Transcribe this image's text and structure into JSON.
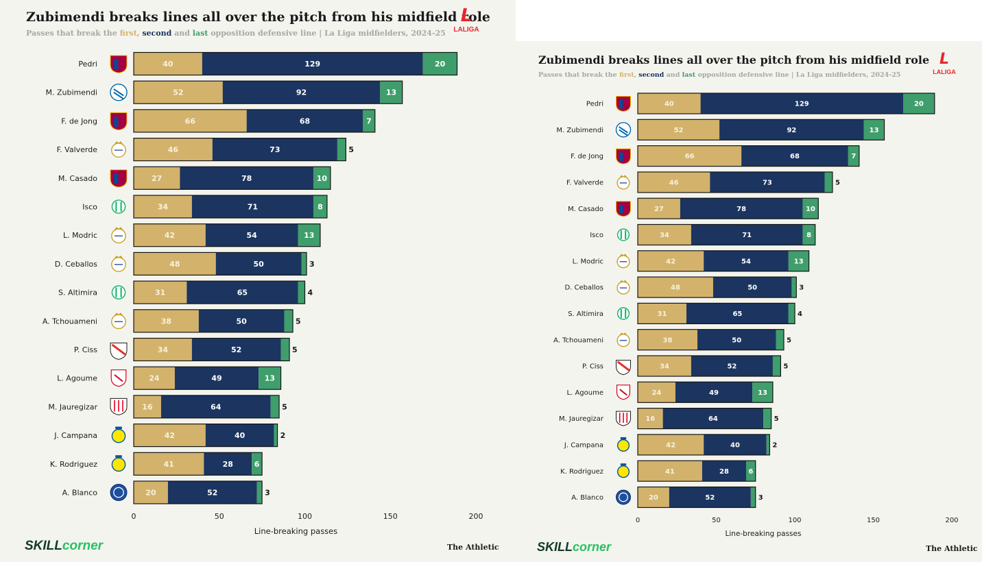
{
  "title": "Zubimendi breaks lines all over the pitch from his midfield role",
  "subtitle": {
    "prefix": "Passes that break the ",
    "first": "first",
    "comma": ", ",
    "second": "second",
    "and": " and ",
    "last": "last",
    "suffix": " opposition defensive line | La Liga midfielders, 2024-25"
  },
  "logo": {
    "mark": "L",
    "text": "LALIGA"
  },
  "footer": {
    "skill": "SKILL",
    "corner": "corner",
    "athletic": "The Athletic"
  },
  "colors": {
    "first": "#d3b26c",
    "second": "#1b3560",
    "last": "#3f9e6b"
  },
  "chart_data": {
    "type": "bar",
    "orientation": "horizontal",
    "stacked": true,
    "categories": [
      "Pedri",
      "M. Zubimendi",
      "F. de Jong",
      "F. Valverde",
      "M. Casado",
      "Isco",
      "L. Modric",
      "D. Ceballos",
      "S. Altimira",
      "A. Tchouameni",
      "P. Ciss",
      "L. Agoume",
      "M. Jauregizar",
      "J. Campana",
      "K. Rodriguez",
      "A. Blanco"
    ],
    "team_crests": [
      "barcelona-crest-icon",
      "real-sociedad-crest-icon",
      "barcelona-crest-icon",
      "real-madrid-crest-icon",
      "barcelona-crest-icon",
      "real-betis-crest-icon",
      "real-madrid-crest-icon",
      "real-madrid-crest-icon",
      "real-betis-crest-icon",
      "real-madrid-crest-icon",
      "rayo-vallecano-crest-icon",
      "sevilla-crest-icon",
      "athletic-club-crest-icon",
      "las-palmas-crest-icon",
      "las-palmas-crest-icon",
      "alaves-crest-icon"
    ],
    "series": [
      {
        "name": "first",
        "values": [
          40,
          52,
          66,
          46,
          27,
          34,
          42,
          48,
          31,
          38,
          34,
          24,
          16,
          42,
          41,
          20
        ]
      },
      {
        "name": "second",
        "values": [
          129,
          92,
          68,
          73,
          78,
          71,
          54,
          50,
          65,
          50,
          52,
          49,
          64,
          40,
          28,
          52
        ]
      },
      {
        "name": "last",
        "values": [
          20,
          13,
          7,
          5,
          10,
          8,
          13,
          3,
          4,
          5,
          5,
          13,
          5,
          2,
          6,
          3
        ]
      }
    ],
    "xlabel": "Line-breaking passes",
    "xlim": [
      0,
      200
    ],
    "xticks": [
      0,
      50,
      100,
      150,
      200
    ],
    "ylabel": ""
  }
}
